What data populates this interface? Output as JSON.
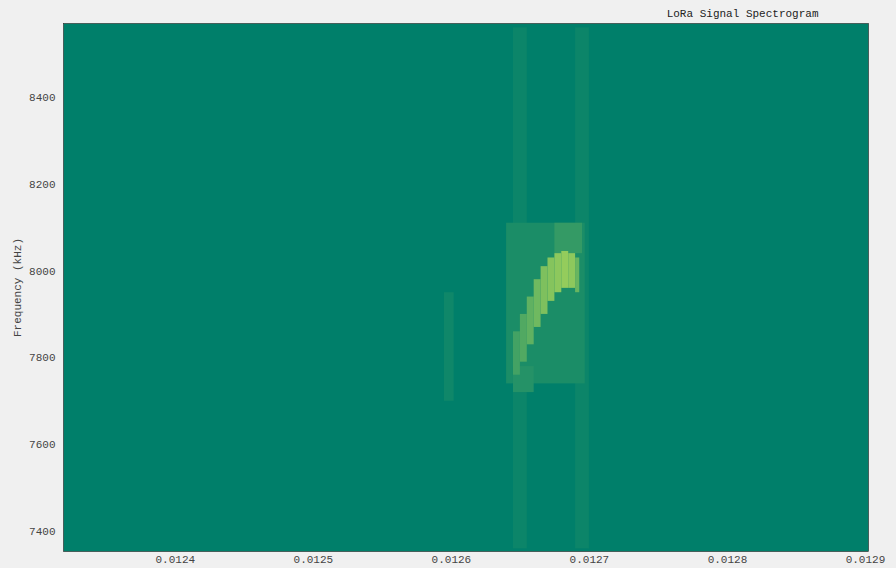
{
  "chart_data": {
    "type": "heatmap",
    "title": "LoRa Signal Spectrogram",
    "y_label": "Frequency (kHz)",
    "xlim": [
      0.012319,
      0.0129022
    ],
    "ylim": [
      7354,
      8570
    ],
    "xticks": [
      0.0124,
      0.0125,
      0.0126,
      0.0127,
      0.0128,
      0.0129
    ],
    "yticks": [
      7400,
      7600,
      7800,
      8000,
      8200,
      8400
    ],
    "color_range": [
      0,
      1
    ],
    "cells": [
      {
        "t0": 0.012645,
        "t1": 0.012655,
        "f0": 7360,
        "f1": 8560,
        "value": 0.08
      },
      {
        "t0": 0.01269,
        "t1": 0.0127,
        "f0": 7360,
        "f1": 8560,
        "value": 0.08
      },
      {
        "t0": 0.012595,
        "t1": 0.012602,
        "f0": 7700,
        "f1": 7950,
        "value": 0.1
      },
      {
        "t0": 0.01264,
        "t1": 0.012697,
        "f0": 7740,
        "f1": 8110,
        "value": 0.18
      },
      {
        "t0": 0.012675,
        "t1": 0.012695,
        "f0": 8040,
        "f1": 8110,
        "value": 0.35
      },
      {
        "t0": 0.012645,
        "t1": 0.01266,
        "f0": 7720,
        "f1": 7780,
        "value": 0.25
      },
      {
        "t0": 0.012645,
        "t1": 0.01265,
        "f0": 7760,
        "f1": 7860,
        "value": 0.45
      },
      {
        "t0": 0.01265,
        "t1": 0.012655,
        "f0": 7790,
        "f1": 7900,
        "value": 0.55
      },
      {
        "t0": 0.012655,
        "t1": 0.01266,
        "f0": 7830,
        "f1": 7940,
        "value": 0.65
      },
      {
        "t0": 0.01266,
        "t1": 0.012665,
        "f0": 7870,
        "f1": 7980,
        "value": 0.75
      },
      {
        "t0": 0.012665,
        "t1": 0.01267,
        "f0": 7900,
        "f1": 8010,
        "value": 0.85
      },
      {
        "t0": 0.01267,
        "t1": 0.012675,
        "f0": 7930,
        "f1": 8030,
        "value": 0.9
      },
      {
        "t0": 0.012675,
        "t1": 0.01268,
        "f0": 7950,
        "f1": 8040,
        "value": 0.95
      },
      {
        "t0": 0.01268,
        "t1": 0.012685,
        "f0": 7960,
        "f1": 8045,
        "value": 1.0
      },
      {
        "t0": 0.012685,
        "t1": 0.01269,
        "f0": 7960,
        "f1": 8040,
        "value": 0.95
      },
      {
        "t0": 0.01269,
        "t1": 0.012693,
        "f0": 7950,
        "f1": 8030,
        "value": 0.7
      }
    ]
  }
}
